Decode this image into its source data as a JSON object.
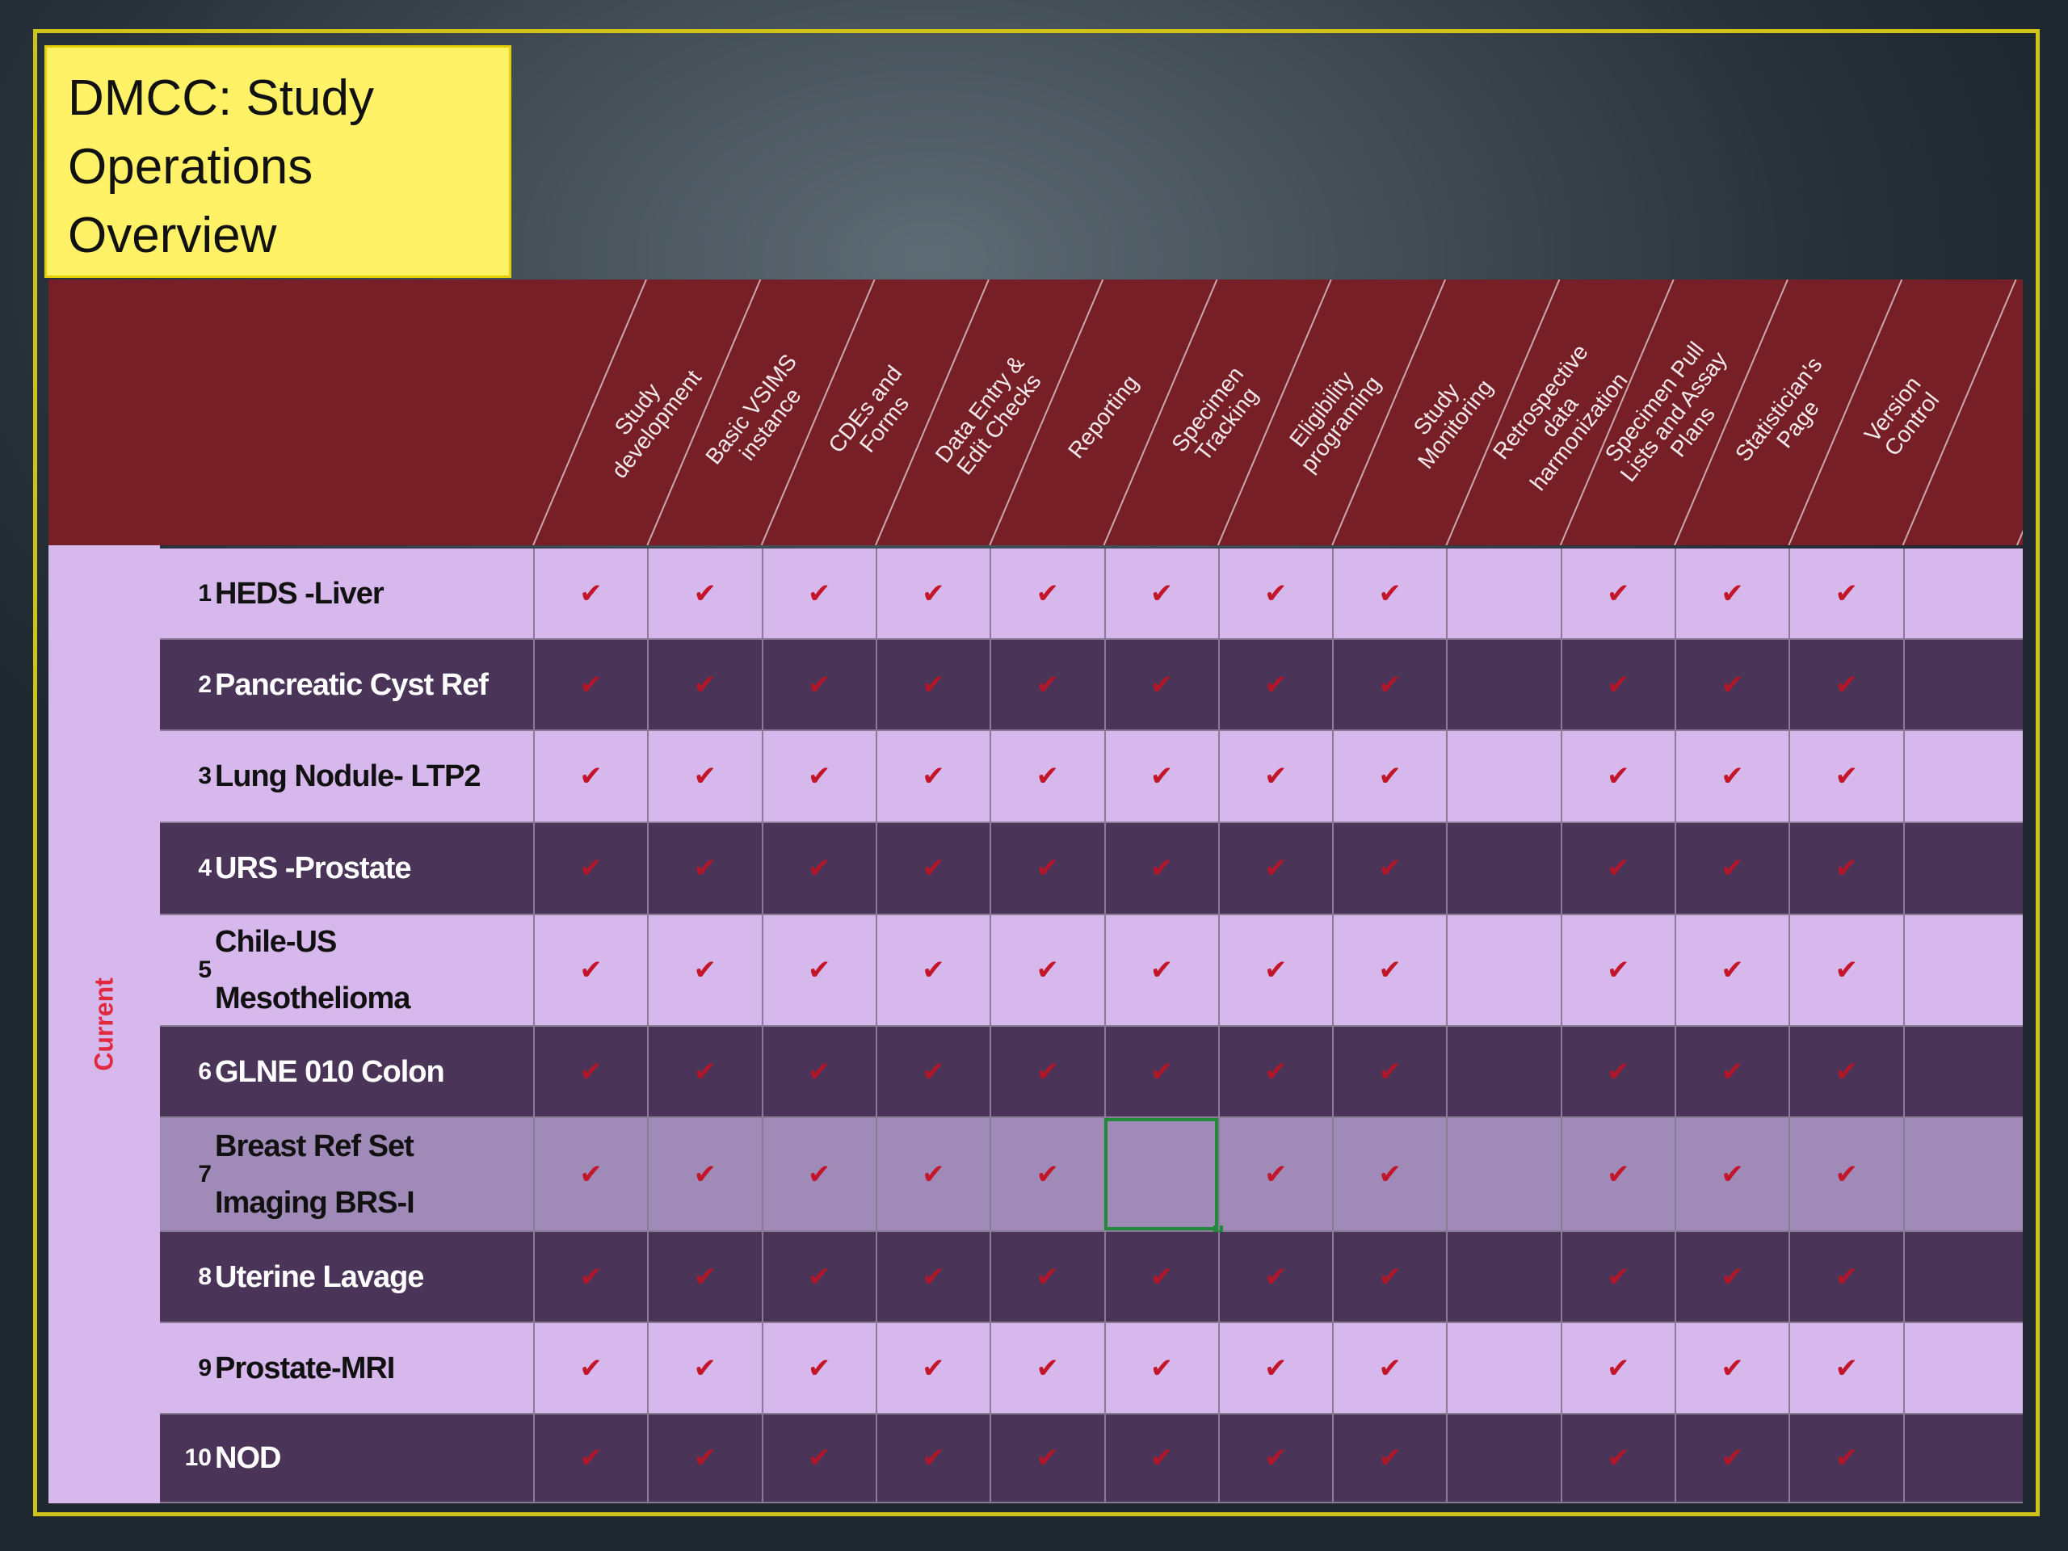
{
  "title": {
    "lines": [
      "DMCC: Study",
      "Operations",
      "Overview"
    ]
  },
  "group_label": "Current",
  "columns": [
    [
      "Study",
      "development"
    ],
    [
      "Basic VSIMS",
      "instance"
    ],
    [
      "CDEs and",
      "Forms"
    ],
    [
      "Data Entry &",
      "Edit Checks"
    ],
    [
      "Reporting"
    ],
    [
      "Specimen",
      "Tracking"
    ],
    [
      "Eligibility",
      "programing"
    ],
    [
      "Study",
      "Monitoring"
    ],
    [
      "Retrospective",
      "data",
      "harmonization"
    ],
    [
      "Specimen Pull",
      "Lists and Assay",
      "Plans"
    ],
    [
      "Statistician's",
      "Page"
    ],
    [
      "Version",
      "Control"
    ],
    []
  ],
  "check_symbol": "✔",
  "rows": [
    {
      "num": "1",
      "name": [
        "HEDS -Liver"
      ],
      "checks": [
        1,
        1,
        1,
        1,
        1,
        1,
        1,
        1,
        0,
        1,
        1,
        1,
        0
      ]
    },
    {
      "num": "2",
      "name": [
        "Pancreatic Cyst Ref"
      ],
      "checks": [
        1,
        1,
        1,
        1,
        1,
        1,
        1,
        1,
        0,
        1,
        1,
        1,
        0
      ]
    },
    {
      "num": "3",
      "name": [
        "Lung Nodule- LTP2"
      ],
      "checks": [
        1,
        1,
        1,
        1,
        1,
        1,
        1,
        1,
        0,
        1,
        1,
        1,
        0
      ]
    },
    {
      "num": "4",
      "name": [
        "URS -Prostate"
      ],
      "checks": [
        1,
        1,
        1,
        1,
        1,
        1,
        1,
        1,
        0,
        1,
        1,
        1,
        0
      ]
    },
    {
      "num": "5",
      "name": [
        "Chile-US",
        "Mesothelioma"
      ],
      "checks": [
        1,
        1,
        1,
        1,
        1,
        1,
        1,
        1,
        0,
        1,
        1,
        1,
        0
      ]
    },
    {
      "num": "6",
      "name": [
        "GLNE 010 Colon"
      ],
      "checks": [
        1,
        1,
        1,
        1,
        1,
        1,
        1,
        1,
        0,
        1,
        1,
        1,
        0
      ]
    },
    {
      "num": "7",
      "name": [
        "Breast Ref Set",
        "Imaging BRS-I"
      ],
      "checks": [
        1,
        1,
        1,
        1,
        1,
        0,
        1,
        1,
        0,
        1,
        1,
        1,
        0
      ]
    },
    {
      "num": "8",
      "name": [
        "Uterine Lavage"
      ],
      "checks": [
        1,
        1,
        1,
        1,
        1,
        1,
        1,
        1,
        0,
        1,
        1,
        1,
        0
      ]
    },
    {
      "num": "9",
      "name": [
        "Prostate-MRI"
      ],
      "checks": [
        1,
        1,
        1,
        1,
        1,
        1,
        1,
        1,
        0,
        1,
        1,
        1,
        0
      ]
    },
    {
      "num": "10",
      "name": [
        "NOD"
      ],
      "checks": [
        1,
        1,
        1,
        1,
        1,
        1,
        1,
        1,
        0,
        1,
        1,
        1,
        0
      ]
    }
  ],
  "selected_cell": {
    "row": 7,
    "column": 6
  },
  "colors": {
    "header": "#771f27",
    "row_light": "#d7b8ec",
    "row_dark": "#4a3559",
    "row_selected": "#a08ab8",
    "check": "#c3162a",
    "title_bg": "#fff266",
    "frame": "#cfc31a",
    "selection_outline": "#1e8a3a"
  }
}
